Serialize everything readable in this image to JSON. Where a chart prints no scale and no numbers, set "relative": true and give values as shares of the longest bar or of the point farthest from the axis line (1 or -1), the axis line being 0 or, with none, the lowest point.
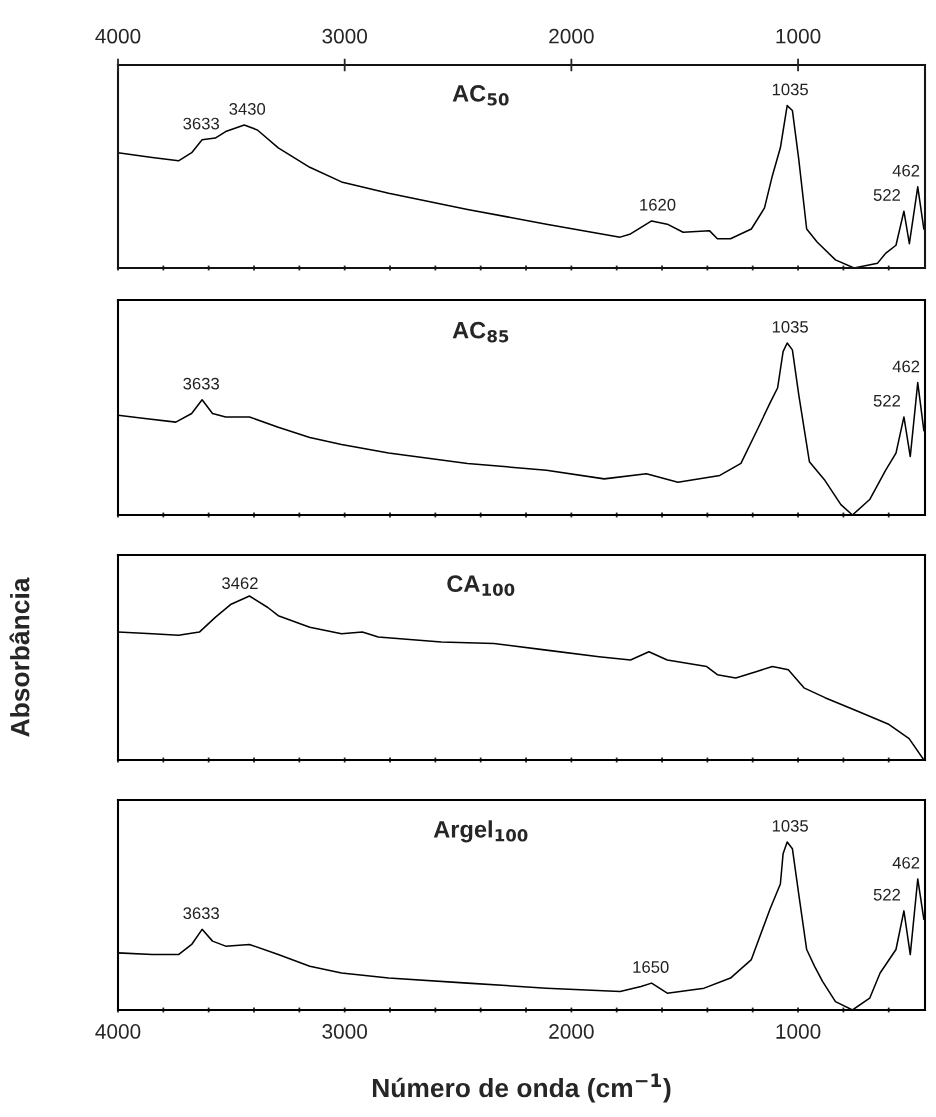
{
  "chart_data": [
    {
      "type": "line",
      "title": "AC$_{50}$",
      "relative": true,
      "xlim": [
        4000,
        440
      ],
      "xticks": [
        {
          "value": 4000,
          "label": null
        },
        {
          "value": 3800,
          "label": null
        },
        {
          "value": 3600,
          "label": null
        },
        {
          "value": 3400,
          "label": null
        },
        {
          "value": 3200,
          "label": null
        },
        {
          "value": 3000,
          "label": null
        },
        {
          "value": 2800,
          "label": null
        },
        {
          "value": 2600,
          "label": null
        },
        {
          "value": 2400,
          "label": null
        },
        {
          "value": 2200,
          "label": null
        },
        {
          "value": 2000,
          "label": null
        },
        {
          "value": 1800,
          "label": null
        },
        {
          "value": 1600,
          "label": null
        },
        {
          "value": 1400,
          "label": null
        },
        {
          "value": 1200,
          "label": null
        },
        {
          "value": 1000,
          "label": null
        },
        {
          "value": 800,
          "label": null
        },
        {
          "value": 600,
          "label": null
        }
      ],
      "x2lim": [
        4000,
        440
      ],
      "x2ticks": [
        4000,
        3000,
        2000,
        1000
      ],
      "tick_labels": false,
      "grid": false,
      "legend": false,
      "series": [
        {
          "color": "#000000",
          "x": [
            4000,
            3849,
            3733,
            3675,
            3629,
            3571,
            3525,
            3443,
            3385,
            3293,
            3154,
            3014,
            2806,
            2458,
            2110,
            1785,
            1739,
            1646,
            1577,
            1507,
            1391,
            1356,
            1298,
            1206,
            1148,
            1113,
            1078,
            1048,
            1025,
            997,
            962,
            916,
            835,
            753,
            649,
            614,
            568,
            533,
            509,
            472,
            445
          ],
          "values": [
            0.71,
            0.68,
            0.66,
            0.71,
            0.79,
            0.8,
            0.84,
            0.88,
            0.85,
            0.74,
            0.62,
            0.53,
            0.46,
            0.36,
            0.27,
            0.19,
            0.21,
            0.29,
            0.27,
            0.22,
            0.23,
            0.18,
            0.18,
            0.24,
            0.37,
            0.57,
            0.74,
            1,
            0.97,
            0.67,
            0.24,
            0.16,
            0.05,
            0,
            0.03,
            0.09,
            0.14,
            0.35,
            0.15,
            0.5,
            0.24
          ]
        }
      ],
      "annotations": [
        {
          "text": "3633",
          "x": 3633,
          "y": 0.79
        },
        {
          "text": "3430",
          "x": 3430,
          "y": 0.88
        },
        {
          "text": "1620",
          "x": 1620,
          "y": 0.29
        },
        {
          "text": "1035",
          "x": 1035,
          "y": 1
        },
        {
          "text": "522",
          "x": 522,
          "y": 0.35
        },
        {
          "text": "462",
          "x": 462,
          "y": 0.5
        }
      ]
    },
    {
      "type": "line",
      "title": "AC$_{85}$",
      "relative": true,
      "xlim": [
        4000,
        440
      ],
      "xticks": [
        {
          "value": 4000,
          "label": null
        },
        {
          "value": 3800,
          "label": null
        },
        {
          "value": 3600,
          "label": null
        },
        {
          "value": 3400,
          "label": null
        },
        {
          "value": 3200,
          "label": null
        },
        {
          "value": 3000,
          "label": null
        },
        {
          "value": 2800,
          "label": null
        },
        {
          "value": 2600,
          "label": null
        },
        {
          "value": 2400,
          "label": null
        },
        {
          "value": 2200,
          "label": null
        },
        {
          "value": 2000,
          "label": null
        },
        {
          "value": 1800,
          "label": null
        },
        {
          "value": 1600,
          "label": null
        },
        {
          "value": 1400,
          "label": null
        },
        {
          "value": 1200,
          "label": null
        },
        {
          "value": 1000,
          "label": null
        },
        {
          "value": 800,
          "label": null
        },
        {
          "value": 600,
          "label": null
        }
      ],
      "tick_labels": false,
      "grid": false,
      "legend": false,
      "series": [
        {
          "color": "#000000",
          "x": [
            4000,
            3872,
            3745,
            3675,
            3629,
            3583,
            3525,
            3420,
            3293,
            3154,
            3014,
            2806,
            2458,
            2110,
            1855,
            1669,
            1530,
            1345,
            1252,
            1182,
            1124,
            1090,
            1066,
            1048,
            1025,
            997,
            950,
            881,
            811,
            760,
            684,
            614,
            568,
            533,
            505,
            472,
            445
          ],
          "values": [
            0.58,
            0.56,
            0.54,
            0.59,
            0.67,
            0.59,
            0.57,
            0.57,
            0.51,
            0.45,
            0.41,
            0.36,
            0.3,
            0.26,
            0.21,
            0.24,
            0.19,
            0.23,
            0.3,
            0.49,
            0.65,
            0.74,
            0.95,
            1,
            0.96,
            0.7,
            0.31,
            0.2,
            0.06,
            0,
            0.09,
            0.26,
            0.36,
            0.57,
            0.34,
            0.77,
            0.49
          ]
        }
      ],
      "annotations": [
        {
          "text": "3633",
          "x": 3633,
          "y": 0.67
        },
        {
          "text": "1035",
          "x": 1035,
          "y": 1
        },
        {
          "text": "522",
          "x": 522,
          "y": 0.57
        },
        {
          "text": "462",
          "x": 462,
          "y": 0.77
        }
      ]
    },
    {
      "type": "line",
      "title": "CA$_{100}$",
      "ylabel": "Absorbância",
      "relative": true,
      "xlim": [
        4000,
        440
      ],
      "xticks": [
        {
          "value": 4000,
          "label": null
        },
        {
          "value": 3800,
          "label": null
        },
        {
          "value": 3600,
          "label": null
        },
        {
          "value": 3400,
          "label": null
        },
        {
          "value": 3200,
          "label": null
        },
        {
          "value": 3000,
          "label": null
        },
        {
          "value": 2800,
          "label": null
        },
        {
          "value": 2600,
          "label": null
        },
        {
          "value": 2400,
          "label": null
        },
        {
          "value": 2200,
          "label": null
        },
        {
          "value": 2000,
          "label": null
        },
        {
          "value": 1800,
          "label": null
        },
        {
          "value": 1600,
          "label": null
        },
        {
          "value": 1400,
          "label": null
        },
        {
          "value": 1200,
          "label": null
        },
        {
          "value": 1000,
          "label": null
        },
        {
          "value": 800,
          "label": null
        },
        {
          "value": 600,
          "label": null
        }
      ],
      "tick_labels": false,
      "grid": false,
      "legend": false,
      "series": [
        {
          "color": "#000000",
          "x": [
            4000,
            3849,
            3733,
            3641,
            3571,
            3501,
            3420,
            3339,
            3293,
            3154,
            3014,
            2922,
            2852,
            2574,
            2342,
            2110,
            1878,
            1739,
            1658,
            1577,
            1403,
            1356,
            1275,
            1182,
            1113,
            1043,
            974,
            881,
            742,
            603,
            510,
            445
          ],
          "values": [
            0.78,
            0.77,
            0.76,
            0.78,
            0.87,
            0.95,
            1,
            0.93,
            0.88,
            0.81,
            0.77,
            0.78,
            0.75,
            0.72,
            0.71,
            0.67,
            0.63,
            0.61,
            0.66,
            0.61,
            0.57,
            0.52,
            0.5,
            0.54,
            0.57,
            0.55,
            0.44,
            0.38,
            0.3,
            0.22,
            0.13,
            0
          ]
        }
      ],
      "annotations": [
        {
          "text": "3462",
          "x": 3462,
          "y": 0.98
        }
      ]
    },
    {
      "type": "line",
      "title": "Argel$_{100}$",
      "xlabel": "Número de onda (cm$^{−1}$)",
      "relative": true,
      "xlim": [
        4000,
        440
      ],
      "xticks": [
        4000,
        {
          "value": 3800,
          "label": null
        },
        {
          "value": 3600,
          "label": null
        },
        {
          "value": 3400,
          "label": null
        },
        {
          "value": 3200,
          "label": null
        },
        3000,
        {
          "value": 2800,
          "label": null
        },
        {
          "value": 2600,
          "label": null
        },
        {
          "value": 2400,
          "label": null
        },
        {
          "value": 2200,
          "label": null
        },
        2000,
        {
          "value": 1800,
          "label": null
        },
        {
          "value": 1600,
          "label": null
        },
        {
          "value": 1400,
          "label": null
        },
        {
          "value": 1200,
          "label": null
        },
        1000,
        {
          "value": 800,
          "label": null
        },
        {
          "value": 600,
          "label": null
        }
      ],
      "tick_labels": "x",
      "grid": false,
      "legend": false,
      "series": [
        {
          "color": "#000000",
          "x": [
            4000,
            3849,
            3733,
            3675,
            3629,
            3583,
            3525,
            3420,
            3293,
            3154,
            3014,
            2806,
            2458,
            2110,
            1785,
            1693,
            1646,
            1577,
            1414,
            1298,
            1206,
            1124,
            1078,
            1066,
            1048,
            1025,
            997,
            962,
            927,
            892,
            835,
            760,
            684,
            638,
            568,
            533,
            505,
            472,
            445
          ],
          "values": [
            0.34,
            0.33,
            0.33,
            0.39,
            0.48,
            0.41,
            0.38,
            0.39,
            0.33,
            0.26,
            0.22,
            0.19,
            0.16,
            0.13,
            0.11,
            0.14,
            0.16,
            0.1,
            0.13,
            0.19,
            0.3,
            0.6,
            0.75,
            0.93,
            1,
            0.96,
            0.69,
            0.36,
            0.26,
            0.17,
            0.05,
            0,
            0.07,
            0.22,
            0.36,
            0.59,
            0.33,
            0.78,
            0.54
          ]
        }
      ],
      "annotations": [
        {
          "text": "3633",
          "x": 3633,
          "y": 0.48
        },
        {
          "text": "1650",
          "x": 1650,
          "y": 0.16
        },
        {
          "text": "1035",
          "x": 1035,
          "y": 1
        },
        {
          "text": "522",
          "x": 522,
          "y": 0.59
        },
        {
          "text": "462",
          "x": 462,
          "y": 0.78
        }
      ]
    }
  ]
}
